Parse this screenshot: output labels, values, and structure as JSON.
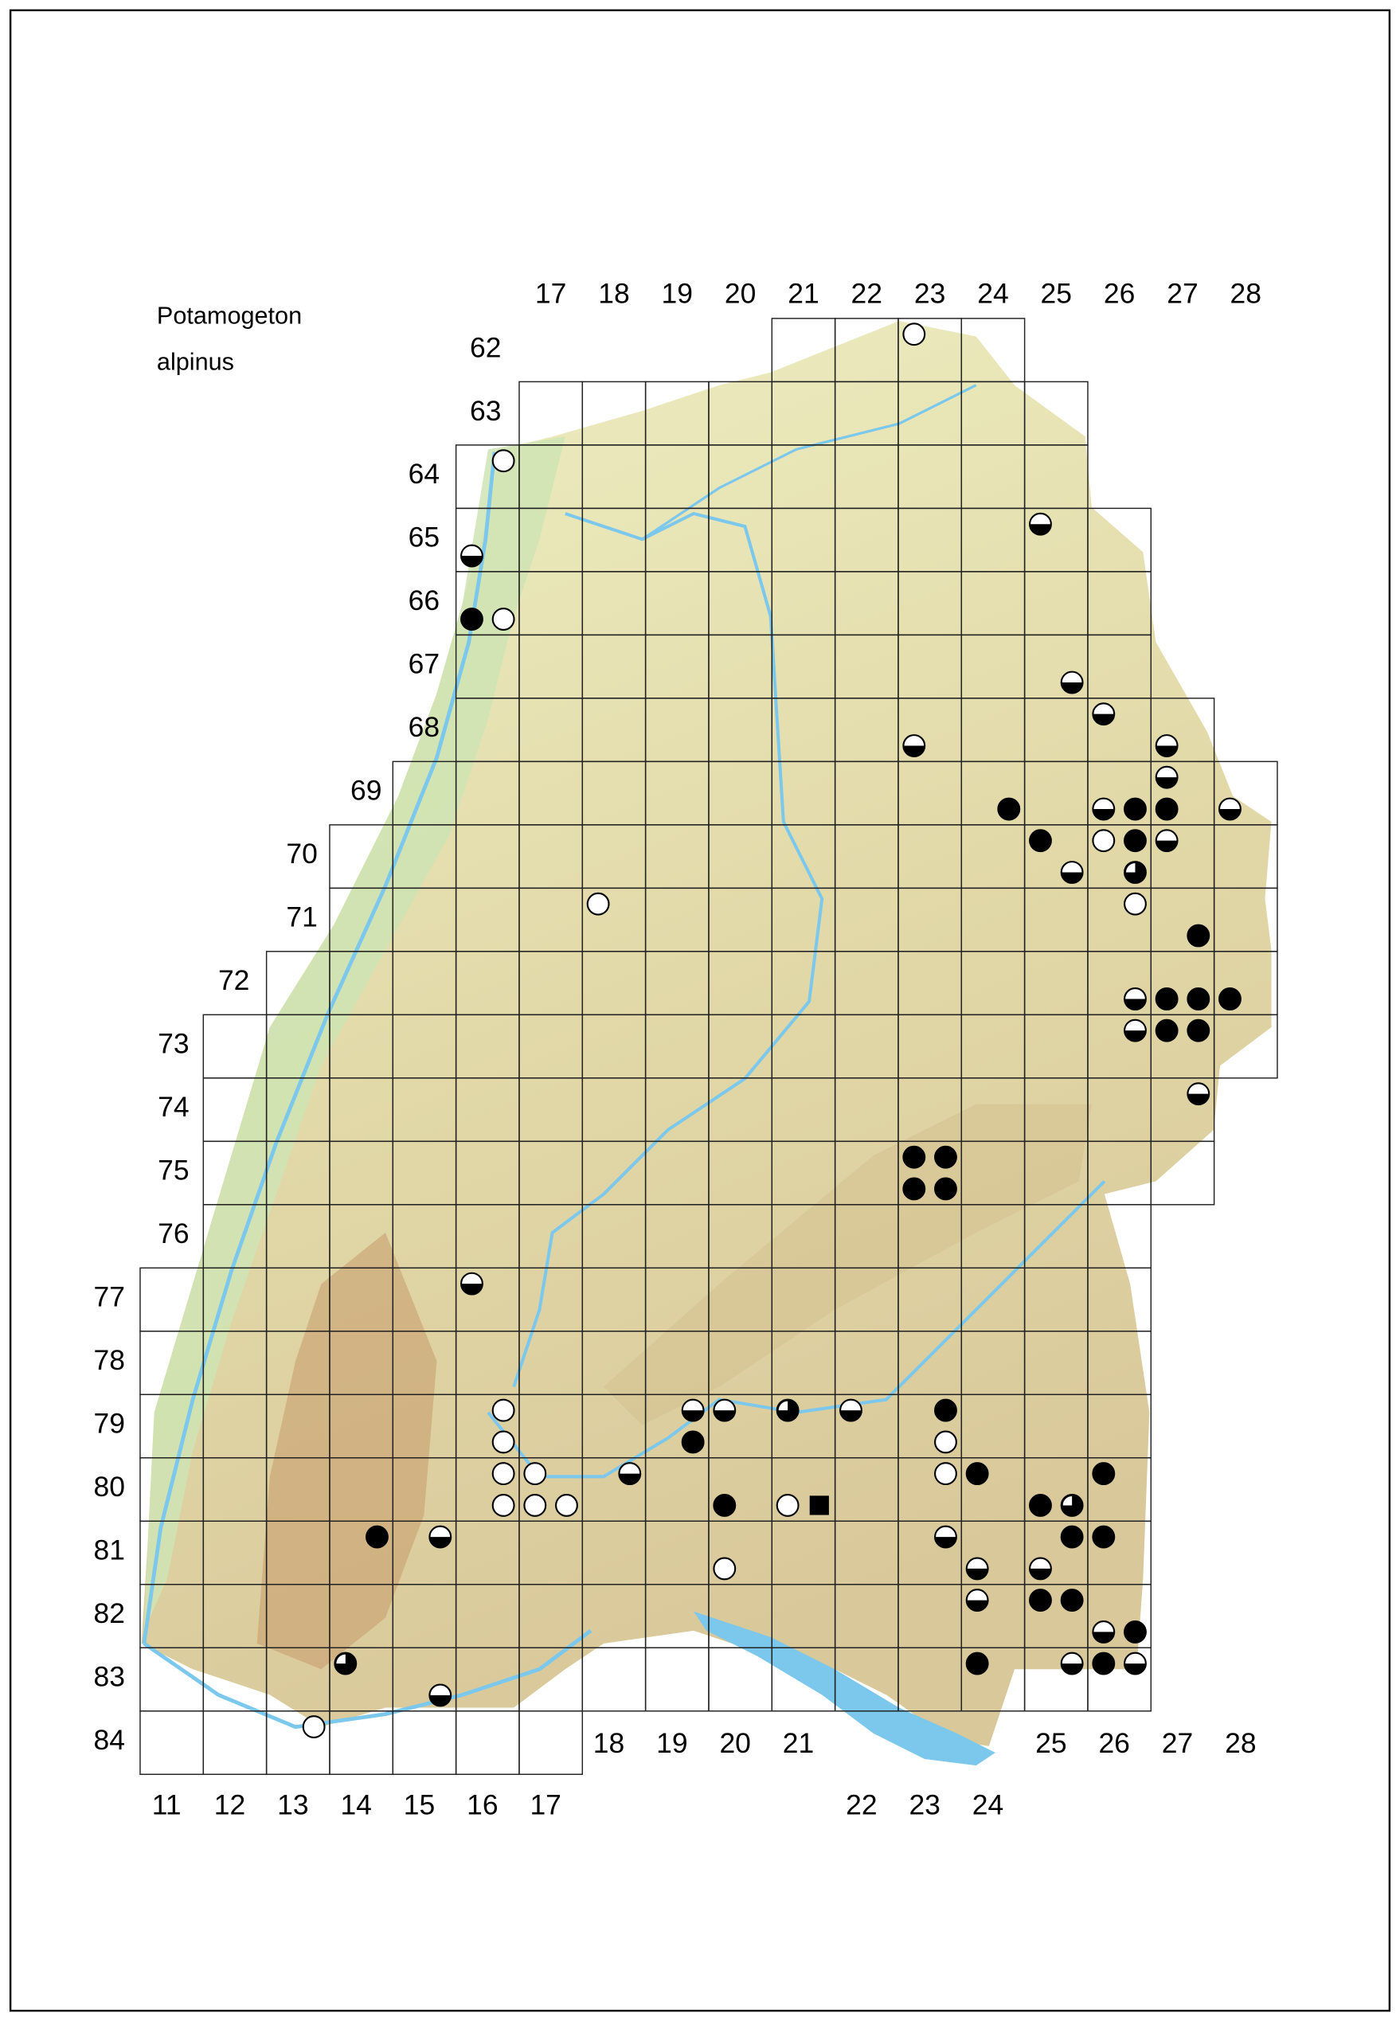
{
  "title": {
    "line1": "Potamogeton",
    "line2": "alpinus"
  },
  "colors": {
    "terrain_low": "#e9eec0",
    "terrain_mid": "#d9cfa0",
    "terrain_high": "#b98a5e",
    "rhine_plain": "#c8e2b0",
    "water": "#7cc8ec",
    "grid": "#222222",
    "symbol": "#000000"
  },
  "column_labels_top": [
    "17",
    "18",
    "19",
    "20",
    "21",
    "22",
    "23",
    "24",
    "25",
    "26",
    "27",
    "28"
  ],
  "column_labels_bottom": [
    "11",
    "12",
    "13",
    "14",
    "15",
    "16",
    "17",
    "18",
    "19",
    "20",
    "21",
    "22",
    "23",
    "24",
    "25",
    "26",
    "27",
    "28"
  ],
  "row_labels": [
    "62",
    "63",
    "64",
    "65",
    "66",
    "67",
    "68",
    "69",
    "70",
    "71",
    "72",
    "73",
    "74",
    "75",
    "76",
    "77",
    "78",
    "79",
    "80",
    "81",
    "82",
    "83",
    "84"
  ],
  "symbol_types": [
    "open",
    "filled",
    "half",
    "three-quarter",
    "square"
  ],
  "symbols": [
    {
      "col": 23,
      "row": 62,
      "q": "NW",
      "type": "open"
    },
    {
      "col": 16,
      "row": 64,
      "q": "NE",
      "type": "open"
    },
    {
      "col": 25,
      "row": 65,
      "q": "NW",
      "type": "half"
    },
    {
      "col": 16,
      "row": 65,
      "q": "SW",
      "type": "half"
    },
    {
      "col": 16,
      "row": 66,
      "q": "SW",
      "type": "filled"
    },
    {
      "col": 16,
      "row": 66,
      "q": "SE",
      "type": "open"
    },
    {
      "col": 25,
      "row": 67,
      "q": "SE",
      "type": "half"
    },
    {
      "col": 26,
      "row": 68,
      "q": "NW",
      "type": "half"
    },
    {
      "col": 23,
      "row": 68,
      "q": "SW",
      "type": "half"
    },
    {
      "col": 27,
      "row": 68,
      "q": "SW",
      "type": "half"
    },
    {
      "col": 27,
      "row": 69,
      "q": "NW",
      "type": "half"
    },
    {
      "col": 24,
      "row": 69,
      "q": "SE",
      "type": "filled"
    },
    {
      "col": 26,
      "row": 69,
      "q": "SW",
      "type": "half"
    },
    {
      "col": 26,
      "row": 69,
      "q": "SE",
      "type": "filled"
    },
    {
      "col": 27,
      "row": 69,
      "q": "SW",
      "type": "filled"
    },
    {
      "col": 28,
      "row": 69,
      "q": "SW",
      "type": "half"
    },
    {
      "col": 25,
      "row": 70,
      "q": "NW",
      "type": "filled"
    },
    {
      "col": 26,
      "row": 70,
      "q": "NW",
      "type": "open"
    },
    {
      "col": 26,
      "row": 70,
      "q": "NE",
      "type": "filled"
    },
    {
      "col": 27,
      "row": 70,
      "q": "NW",
      "type": "half"
    },
    {
      "col": 25,
      "row": 70,
      "q": "SE",
      "type": "half"
    },
    {
      "col": 26,
      "row": 70,
      "q": "SE",
      "type": "three-quarter"
    },
    {
      "col": 26,
      "row": 71,
      "q": "NE",
      "type": "open"
    },
    {
      "col": 18,
      "row": 71,
      "q": "NW",
      "type": "open"
    },
    {
      "col": 27,
      "row": 71,
      "q": "SE",
      "type": "filled"
    },
    {
      "col": 26,
      "row": 72,
      "q": "SE",
      "type": "half"
    },
    {
      "col": 27,
      "row": 72,
      "q": "SW",
      "type": "filled"
    },
    {
      "col": 27,
      "row": 72,
      "q": "SE",
      "type": "filled"
    },
    {
      "col": 28,
      "row": 72,
      "q": "SW",
      "type": "filled"
    },
    {
      "col": 26,
      "row": 73,
      "q": "NE",
      "type": "half"
    },
    {
      "col": 27,
      "row": 73,
      "q": "NW",
      "type": "filled"
    },
    {
      "col": 27,
      "row": 73,
      "q": "NE",
      "type": "filled"
    },
    {
      "col": 27,
      "row": 74,
      "q": "NE",
      "type": "half"
    },
    {
      "col": 23,
      "row": 75,
      "q": "NW",
      "type": "filled"
    },
    {
      "col": 23,
      "row": 75,
      "q": "NE",
      "type": "filled"
    },
    {
      "col": 23,
      "row": 75,
      "q": "SW",
      "type": "filled"
    },
    {
      "col": 23,
      "row": 75,
      "q": "SE",
      "type": "filled"
    },
    {
      "col": 16,
      "row": 77,
      "q": "NW",
      "type": "half"
    },
    {
      "col": 16,
      "row": 79,
      "q": "NE",
      "type": "open"
    },
    {
      "col": 16,
      "row": 79,
      "q": "SE",
      "type": "open"
    },
    {
      "col": 16,
      "row": 80,
      "q": "NE",
      "type": "open"
    },
    {
      "col": 17,
      "row": 80,
      "q": "NW",
      "type": "open"
    },
    {
      "col": 16,
      "row": 80,
      "q": "SE",
      "type": "open"
    },
    {
      "col": 17,
      "row": 80,
      "q": "SW",
      "type": "open"
    },
    {
      "col": 17,
      "row": 80,
      "q": "SE",
      "type": "open"
    },
    {
      "col": 19,
      "row": 79,
      "q": "NE",
      "type": "half"
    },
    {
      "col": 20,
      "row": 79,
      "q": "NW",
      "type": "half"
    },
    {
      "col": 19,
      "row": 79,
      "q": "SE",
      "type": "filled"
    },
    {
      "col": 18,
      "row": 80,
      "q": "NE",
      "type": "half"
    },
    {
      "col": 20,
      "row": 80,
      "q": "SW",
      "type": "filled"
    },
    {
      "col": 21,
      "row": 79,
      "q": "NW",
      "type": "three-quarter"
    },
    {
      "col": 22,
      "row": 79,
      "q": "NW",
      "type": "half"
    },
    {
      "col": 23,
      "row": 79,
      "q": "NE",
      "type": "filled"
    },
    {
      "col": 23,
      "row": 79,
      "q": "SE",
      "type": "open"
    },
    {
      "col": 23,
      "row": 80,
      "q": "NE",
      "type": "open"
    },
    {
      "col": 24,
      "row": 80,
      "q": "NW",
      "type": "filled"
    },
    {
      "col": 21,
      "row": 80,
      "q": "SW",
      "type": "open"
    },
    {
      "col": 21,
      "row": 80,
      "q": "SE",
      "type": "square"
    },
    {
      "col": 25,
      "row": 80,
      "q": "SW",
      "type": "filled"
    },
    {
      "col": 25,
      "row": 80,
      "q": "SE",
      "type": "three-quarter"
    },
    {
      "col": 26,
      "row": 80,
      "q": "NW",
      "type": "filled"
    },
    {
      "col": 25,
      "row": 81,
      "q": "NE",
      "type": "filled"
    },
    {
      "col": 26,
      "row": 81,
      "q": "NW",
      "type": "filled"
    },
    {
      "col": 23,
      "row": 81,
      "q": "NE",
      "type": "half"
    },
    {
      "col": 14,
      "row": 81,
      "q": "NE",
      "type": "filled"
    },
    {
      "col": 15,
      "row": 81,
      "q": "NE",
      "type": "half"
    },
    {
      "col": 20,
      "row": 81,
      "q": "SW",
      "type": "open"
    },
    {
      "col": 24,
      "row": 81,
      "q": "SW",
      "type": "half"
    },
    {
      "col": 25,
      "row": 81,
      "q": "SW",
      "type": "half"
    },
    {
      "col": 24,
      "row": 82,
      "q": "NW",
      "type": "half"
    },
    {
      "col": 25,
      "row": 82,
      "q": "NW",
      "type": "filled"
    },
    {
      "col": 25,
      "row": 82,
      "q": "NE",
      "type": "filled"
    },
    {
      "col": 26,
      "row": 82,
      "q": "SW",
      "type": "half"
    },
    {
      "col": 26,
      "row": 82,
      "q": "SE",
      "type": "filled"
    },
    {
      "col": 24,
      "row": 83,
      "q": "NW",
      "type": "filled"
    },
    {
      "col": 25,
      "row": 83,
      "q": "NE",
      "type": "half"
    },
    {
      "col": 26,
      "row": 83,
      "q": "NW",
      "type": "filled"
    },
    {
      "col": 26,
      "row": 83,
      "q": "NE",
      "type": "half"
    },
    {
      "col": 14,
      "row": 83,
      "q": "NW",
      "type": "three-quarter"
    },
    {
      "col": 15,
      "row": 83,
      "q": "SE",
      "type": "half"
    },
    {
      "col": 13,
      "row": 84,
      "q": "NE",
      "type": "open"
    }
  ]
}
